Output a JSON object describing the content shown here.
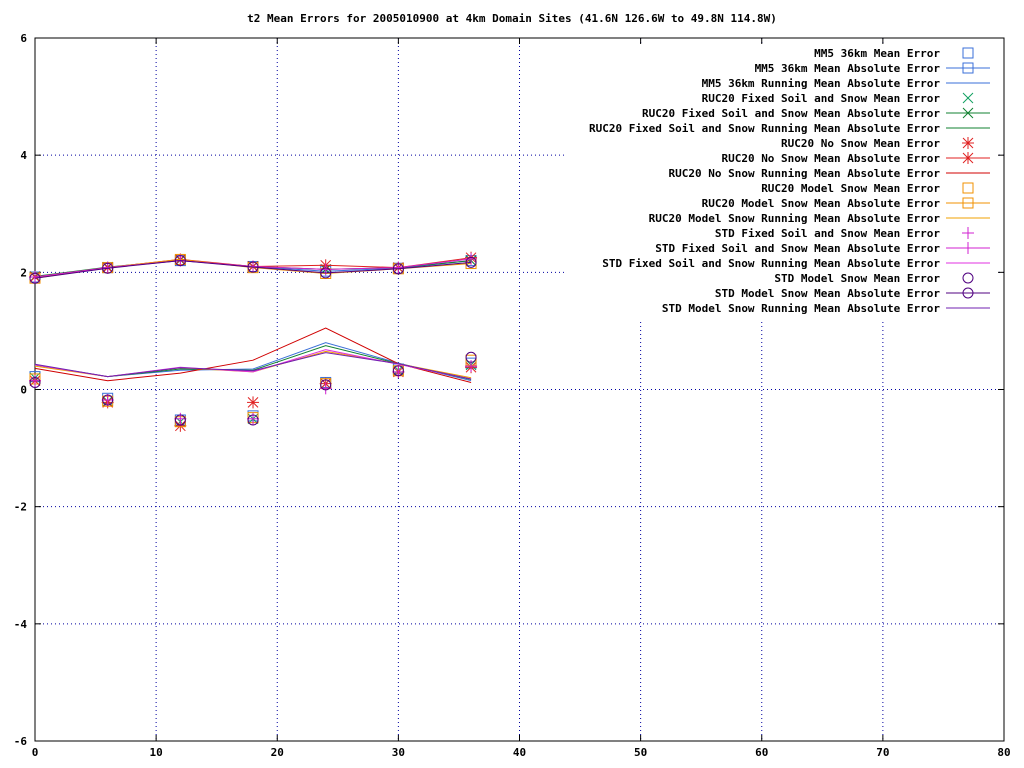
{
  "chart_data": {
    "type": "line",
    "title": "t2 Mean Errors for 2005010900 at 4km Domain Sites (41.6N 126.6W to 49.8N 114.8W)",
    "xlabel": "",
    "ylabel": "",
    "xlim": [
      0,
      80
    ],
    "ylim": [
      -6,
      6
    ],
    "xticks": [
      0,
      10,
      20,
      30,
      40,
      50,
      60,
      70,
      80
    ],
    "yticks": [
      -6,
      -4,
      -2,
      0,
      2,
      4,
      6
    ],
    "grid": true,
    "legend_position": "top-right",
    "x": [
      0,
      6,
      12,
      18,
      24,
      30,
      36
    ],
    "series": [
      {
        "name": "MM5 36km Mean Error",
        "style": "points",
        "marker": "square",
        "color": "#3a6fd8",
        "values": [
          0.22,
          -0.15,
          -0.52,
          -0.45,
          0.12,
          0.35,
          0.45
        ]
      },
      {
        "name": "MM5 36km Mean Absolute Error",
        "style": "linespoints",
        "marker": "square",
        "color": "#3a6fd8",
        "values": [
          1.92,
          2.08,
          2.2,
          2.1,
          2.02,
          2.07,
          2.2
        ]
      },
      {
        "name": "MM5 36km Running Mean Absolute Error",
        "style": "line",
        "color": "#3a6fd8",
        "values": [
          0.42,
          0.22,
          0.33,
          0.35,
          0.8,
          0.45,
          0.15
        ]
      },
      {
        "name": "RUC20 Fixed Soil and Snow Mean Error",
        "style": "points",
        "marker": "x",
        "color": "#10a060",
        "values": [
          0.2,
          -0.2,
          -0.55,
          -0.5,
          0.1,
          0.33,
          0.42
        ]
      },
      {
        "name": "RUC20 Fixed Soil and Snow Mean Absolute Error",
        "style": "linespoints",
        "marker": "x",
        "color": "#108030",
        "values": [
          1.93,
          2.09,
          2.21,
          2.1,
          2.05,
          2.08,
          2.2
        ]
      },
      {
        "name": "RUC20 Fixed Soil and Snow Running Mean Absolute Error",
        "style": "line",
        "color": "#108030",
        "values": [
          0.42,
          0.22,
          0.35,
          0.33,
          0.75,
          0.44,
          0.17
        ]
      },
      {
        "name": "RUC20 No Snow Mean Error",
        "style": "points",
        "marker": "star",
        "color": "#e02020",
        "values": [
          0.15,
          -0.22,
          -0.62,
          -0.22,
          0.1,
          0.3,
          0.38
        ]
      },
      {
        "name": "RUC20 No Snow Mean Absolute Error",
        "style": "linespoints",
        "marker": "star",
        "color": "#e02020",
        "values": [
          1.92,
          2.08,
          2.22,
          2.1,
          2.12,
          2.08,
          2.25
        ]
      },
      {
        "name": "RUC20 No Snow Running Mean Absolute Error",
        "style": "line",
        "color": "#d00000",
        "values": [
          0.36,
          0.15,
          0.28,
          0.5,
          1.05,
          0.44,
          0.12
        ]
      },
      {
        "name": "RUC20 Model Snow Mean Error",
        "style": "points",
        "marker": "square",
        "color": "#f09000",
        "values": [
          0.18,
          -0.2,
          -0.55,
          -0.48,
          0.1,
          0.32,
          0.5
        ]
      },
      {
        "name": "RUC20 Model Snow Mean Absolute Error",
        "style": "linespoints",
        "marker": "square",
        "color": "#f09000",
        "values": [
          1.9,
          2.08,
          2.22,
          2.08,
          1.98,
          2.06,
          2.15
        ]
      },
      {
        "name": "RUC20 Model Snow Running Mean Absolute Error",
        "style": "line",
        "color": "#f0a000",
        "values": [
          0.4,
          0.22,
          0.37,
          0.3,
          0.65,
          0.44,
          0.2
        ]
      },
      {
        "name": "STD Fixed Soil and Snow Mean Error",
        "style": "points",
        "marker": "plus",
        "color": "#d020d0",
        "values": [
          0.15,
          -0.18,
          -0.5,
          -0.5,
          0.02,
          0.3,
          0.4
        ]
      },
      {
        "name": "STD Fixed Soil and Snow Mean Absolute Error",
        "style": "linespoints",
        "marker": "plus",
        "color": "#d020d0",
        "values": [
          1.92,
          2.08,
          2.2,
          2.1,
          2.05,
          2.08,
          2.23
        ]
      },
      {
        "name": "STD Fixed Soil and Snow Running Mean Absolute Error",
        "style": "line",
        "color": "#e030e0",
        "values": [
          0.42,
          0.22,
          0.38,
          0.3,
          0.68,
          0.43,
          0.18
        ]
      },
      {
        "name": "STD Model Snow Mean Error",
        "style": "points",
        "marker": "circle",
        "color": "#500080",
        "values": [
          0.12,
          -0.18,
          -0.52,
          -0.52,
          0.08,
          0.32,
          0.55
        ]
      },
      {
        "name": "STD Model Snow Mean Absolute Error",
        "style": "linespoints",
        "marker": "circle",
        "color": "#500080",
        "values": [
          1.9,
          2.07,
          2.2,
          2.09,
          1.99,
          2.06,
          2.17
        ]
      },
      {
        "name": "STD Model Snow Running Mean Absolute Error",
        "style": "line",
        "color": "#7020b0",
        "values": [
          0.43,
          0.22,
          0.37,
          0.32,
          0.63,
          0.44,
          0.18
        ]
      }
    ]
  }
}
